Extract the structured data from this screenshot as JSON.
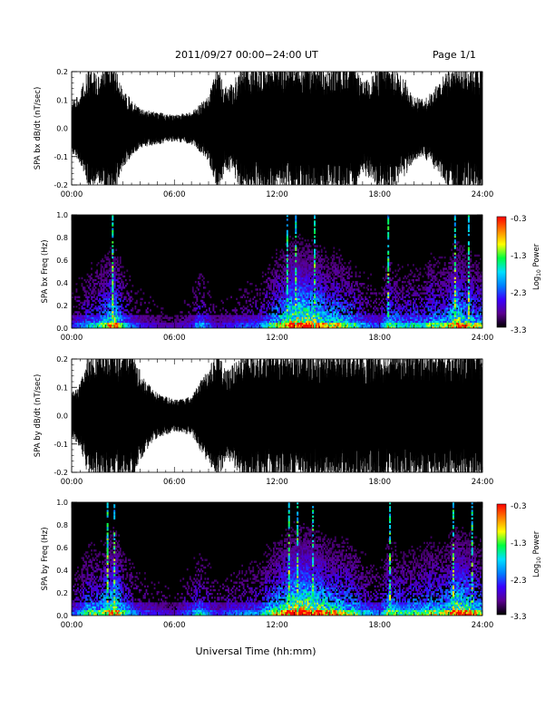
{
  "header": {
    "title": "2011/09/27  00:00−24:00 UT",
    "page_label": "Page 1/1"
  },
  "colors": {
    "trace": "#000000",
    "axis": "#000000",
    "spectrogram_background": "#000000",
    "colorscale": [
      "#000000",
      "#5a0090",
      "#3a00ff",
      "#0080ff",
      "#00e0ff",
      "#00ff40",
      "#ffff00",
      "#ff8000",
      "#ff0000"
    ]
  },
  "chart_data": [
    {
      "type": "line",
      "id": "bx_dbdt",
      "ylabel": "SPA bx dB/dt (nT/sec)",
      "xlim": [
        0,
        24
      ],
      "ylim": [
        -0.2,
        0.2
      ],
      "xticks": [
        "00:00",
        "06:00",
        "12:00",
        "18:00",
        "24:00"
      ],
      "yticks": [
        "-0.2",
        "-0.1",
        "0.0",
        "0.1",
        "0.2"
      ],
      "envelope": {
        "hours": [
          0,
          0.5,
          1,
          1.5,
          2,
          2.2,
          2.5,
          3,
          3.5,
          4,
          5,
          6,
          7,
          8,
          8.5,
          9,
          9.5,
          10,
          10.5,
          11,
          11.5,
          12,
          12.5,
          13,
          13.5,
          14,
          14.5,
          15,
          15.5,
          16,
          16.5,
          17,
          17.5,
          18,
          18.5,
          19,
          19.5,
          20,
          20.5,
          21,
          21.5,
          22,
          22.5,
          23,
          23.5,
          24
        ],
        "amplitude": [
          0.08,
          0.11,
          0.2,
          0.16,
          0.2,
          0.2,
          0.2,
          0.12,
          0.09,
          0.06,
          0.05,
          0.04,
          0.05,
          0.1,
          0.2,
          0.13,
          0.15,
          0.2,
          0.2,
          0.2,
          0.2,
          0.2,
          0.2,
          0.2,
          0.2,
          0.2,
          0.2,
          0.18,
          0.2,
          0.2,
          0.2,
          0.14,
          0.16,
          0.2,
          0.2,
          0.18,
          0.15,
          0.1,
          0.09,
          0.11,
          0.15,
          0.18,
          0.2,
          0.2,
          0.2,
          0.2
        ]
      }
    },
    {
      "type": "heatmap",
      "id": "bx_freq",
      "ylabel": "SPA bx Freq (Hz)",
      "xlim": [
        0,
        24
      ],
      "ylim": [
        0,
        1.0
      ],
      "xticks": [
        "00:00",
        "06:00",
        "12:00",
        "18:00",
        "24:00"
      ],
      "yticks": [
        "0.0",
        "0.2",
        "0.4",
        "0.6",
        "0.8",
        "1.0"
      ],
      "colorbar": {
        "label": "Log10 Power",
        "label_base": "Log",
        "label_sub": "10",
        "label_rest": " Power",
        "range": [
          -3.3,
          -0.3
        ],
        "ticks": [
          "-0.3",
          "-1.3",
          "-2.3",
          "-3.3"
        ]
      },
      "activity": {
        "hours": [
          0,
          0.5,
          1,
          1.5,
          2,
          2.5,
          3,
          3.5,
          4,
          5,
          6,
          7,
          7.5,
          8,
          8.5,
          9,
          10,
          11,
          11.5,
          12,
          12.5,
          13,
          13.5,
          14,
          14.5,
          15,
          15.5,
          16,
          16.5,
          17,
          17.5,
          18,
          18.5,
          19,
          19.5,
          20,
          20.5,
          21,
          21.5,
          22,
          22.5,
          23,
          23.5,
          24
        ],
        "level": [
          0.2,
          0.3,
          0.4,
          0.45,
          0.6,
          0.8,
          0.45,
          0.3,
          0.2,
          0.15,
          0.12,
          0.2,
          0.4,
          0.25,
          0.15,
          0.2,
          0.25,
          0.3,
          0.45,
          0.6,
          0.75,
          0.95,
          0.9,
          0.85,
          0.8,
          0.6,
          0.65,
          0.55,
          0.5,
          0.35,
          0.3,
          0.25,
          0.55,
          0.45,
          0.4,
          0.45,
          0.4,
          0.55,
          0.5,
          0.6,
          0.85,
          0.7,
          0.6,
          0.5
        ]
      },
      "bright_lines_hours": [
        2.4,
        12.6,
        13.1,
        14.2,
        18.5,
        22.4,
        23.2
      ]
    },
    {
      "type": "line",
      "id": "by_dbdt",
      "ylabel": "SPA by dB/dt (nT/sec)",
      "xlim": [
        0,
        24
      ],
      "ylim": [
        -0.2,
        0.2
      ],
      "xticks": [
        "00:00",
        "06:00",
        "12:00",
        "18:00",
        "24:00"
      ],
      "yticks": [
        "-0.2",
        "-0.1",
        "0.0",
        "0.1",
        "0.2"
      ],
      "envelope": {
        "hours": [
          0,
          0.5,
          1,
          1.5,
          2,
          2.5,
          3,
          3.5,
          4,
          4.5,
          5,
          6,
          7,
          8,
          8.5,
          9,
          9.5,
          10,
          10.5,
          11,
          11.5,
          12,
          12.5,
          13,
          13.5,
          14,
          14.5,
          15,
          15.5,
          16,
          16.5,
          17,
          17.5,
          18,
          18.5,
          19,
          19.5,
          20,
          20.5,
          21,
          21.5,
          22,
          22.5,
          23,
          23.5,
          24
        ],
        "amplitude": [
          0.07,
          0.1,
          0.2,
          0.2,
          0.2,
          0.2,
          0.2,
          0.2,
          0.14,
          0.1,
          0.07,
          0.05,
          0.06,
          0.15,
          0.2,
          0.14,
          0.16,
          0.2,
          0.2,
          0.2,
          0.2,
          0.2,
          0.2,
          0.2,
          0.2,
          0.2,
          0.2,
          0.2,
          0.2,
          0.2,
          0.2,
          0.2,
          0.2,
          0.2,
          0.2,
          0.2,
          0.2,
          0.2,
          0.2,
          0.2,
          0.2,
          0.2,
          0.2,
          0.2,
          0.2,
          0.2
        ]
      }
    },
    {
      "type": "heatmap",
      "id": "by_freq",
      "ylabel": "SPA by Freq (Hz)",
      "xlabel": "Universal Time (hh:mm)",
      "xlim": [
        0,
        24
      ],
      "ylim": [
        0,
        1.0
      ],
      "xticks": [
        "00:00",
        "06:00",
        "12:00",
        "18:00",
        "24:00"
      ],
      "yticks": [
        "0.0",
        "0.2",
        "0.4",
        "0.6",
        "0.8",
        "1.0"
      ],
      "colorbar": {
        "label": "Log10 Power",
        "label_base": "Log",
        "label_sub": "10",
        "label_rest": " Power",
        "range": [
          -3.3,
          -0.3
        ],
        "ticks": [
          "-0.3",
          "-1.3",
          "-2.3",
          "-3.3"
        ]
      },
      "activity": {
        "hours": [
          0,
          0.5,
          1,
          1.5,
          2,
          2.5,
          3,
          3.5,
          4,
          5,
          6,
          7,
          7.5,
          8,
          8.5,
          9,
          10,
          11,
          11.5,
          12,
          12.5,
          13,
          13.5,
          14,
          14.5,
          15,
          15.5,
          16,
          16.5,
          17,
          17.5,
          18,
          18.5,
          19,
          19.5,
          20,
          20.5,
          21,
          21.5,
          22,
          22.5,
          23,
          23.5,
          24
        ],
        "level": [
          0.25,
          0.35,
          0.55,
          0.5,
          0.65,
          0.85,
          0.5,
          0.35,
          0.25,
          0.2,
          0.15,
          0.3,
          0.45,
          0.3,
          0.2,
          0.25,
          0.3,
          0.35,
          0.55,
          0.65,
          0.8,
          0.95,
          0.95,
          0.9,
          0.85,
          0.7,
          0.65,
          0.6,
          0.55,
          0.4,
          0.35,
          0.3,
          0.6,
          0.5,
          0.45,
          0.5,
          0.5,
          0.6,
          0.55,
          0.65,
          0.9,
          0.8,
          0.7,
          0.55
        ]
      },
      "bright_lines_hours": [
        2.1,
        2.5,
        12.7,
        13.2,
        14.1,
        18.6,
        22.3,
        23.4
      ]
    }
  ]
}
